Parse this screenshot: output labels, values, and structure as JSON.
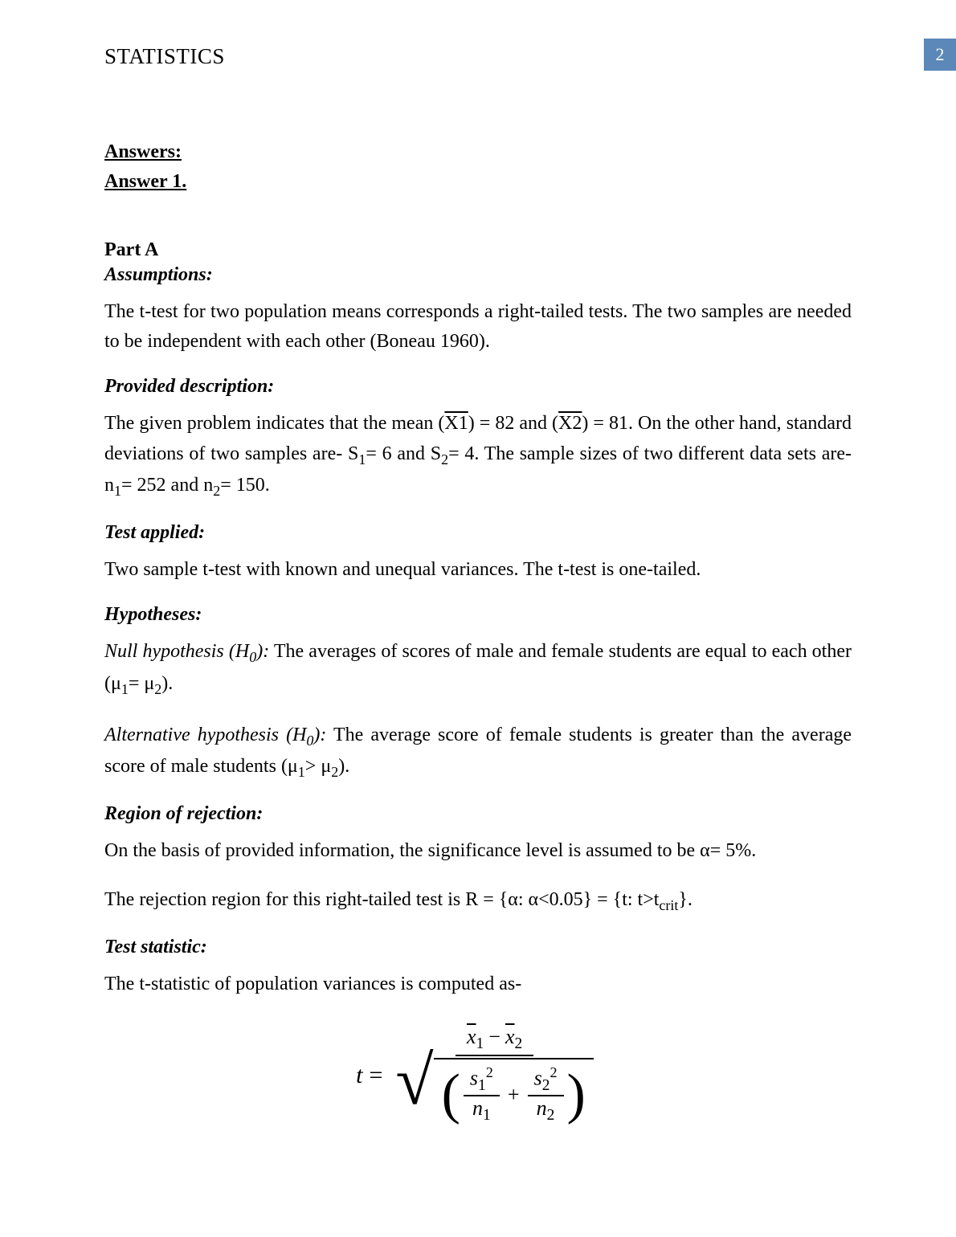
{
  "header": {
    "title": "STATISTICS",
    "page_number": "2"
  },
  "headings": {
    "answers": "Answers:",
    "answer1": "Answer 1.",
    "partA": "Part A",
    "assumptions": "Assumptions:",
    "provided": "Provided description:",
    "testapplied": "Test applied:",
    "hypotheses": "Hypotheses:",
    "region": "Region of rejection:",
    "teststat": "Test statistic:"
  },
  "body": {
    "p1": "The t-test for two population means corresponds a right-tailed tests. The two samples are needed to be independent with each other (Boneau 1960).",
    "p2a": "The given problem indicates that the mean (",
    "p2b": ") = 82 and (",
    "p2c": ") = 81. On the other hand, standard deviations of two samples are- S",
    "p2d": "= 6 and S",
    "p2e": "= 4. The sample sizes of two different data sets are- n",
    "p2f": "= 252 and n",
    "p2g": "= 150.",
    "X1": "X1",
    "X2": "X2",
    "p3": "Two sample t-test with known and unequal variances. The t-test is one-tailed.",
    "nullh_label": "Null hypothesis (H",
    "nullh_sub": "0",
    "nullh_close": "):",
    "nullh_text": " The averages of scores of male and female students are equal to each other (μ",
    "nullh_text2": "= μ",
    "nullh_text3": ").",
    "alth_label": "Alternative hypothesis (H",
    "alth_sub": "0",
    "alth_close": "):",
    "alth_text": " The average score of female students is greater than the average score of male students (μ",
    "alth_text2": "> μ",
    "alth_text3": ").",
    "p6": "On the basis of provided information, the significance level is assumed to be α= 5%.",
    "p7a": "The rejection region for this right-tailed test is R = {α: α<0.05} = {t: t>t",
    "p7b": "crit",
    "p7c": "}.",
    "p8": "The t-statistic of population variances is computed as-",
    "one": "1",
    "two": "2"
  },
  "formula": {
    "t": "t",
    "eq": "=",
    "x": "x",
    "minus": "−",
    "s": "s",
    "n": "n",
    "plus": "+",
    "one": "1",
    "two": "2",
    "sq": "2"
  },
  "colors": {
    "pagenum_bg": "#5b88b8",
    "pagenum_fg": "#ffffff",
    "text": "#000000",
    "bg": "#ffffff"
  }
}
